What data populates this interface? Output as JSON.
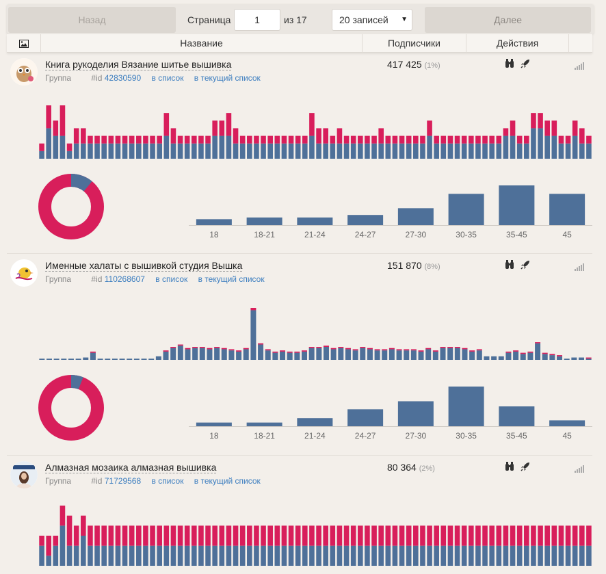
{
  "pagination": {
    "back_label": "Назад",
    "page_label": "Страница",
    "page_value": "1",
    "of_label": "из 17",
    "per_page": "20 записей",
    "next_label": "Далее"
  },
  "table_header": {
    "image_icon": "image-icon",
    "name": "Название",
    "subscribers": "Подписчики",
    "actions": "Действия"
  },
  "colors": {
    "blue": "#4e7099",
    "pink": "#d81e5b"
  },
  "groups": [
    {
      "title": "Книга рукоделия Вязание шитье вышивка",
      "type": "Группа",
      "id_label": "#id",
      "id": "42830590",
      "link_list": "в список",
      "link_current": "в текущий список",
      "subscribers": "417 425",
      "percent": "(1%)",
      "icons": [
        "binoculars-icon",
        "rocket-icon",
        "signal-icon"
      ]
    },
    {
      "title": "Именные халаты с вышивкой студия Вышка",
      "type": "Группа",
      "id_label": "#id",
      "id": "110268607",
      "link_list": "в список",
      "link_current": "в текущий список",
      "subscribers": "151 870",
      "percent": "(8%)",
      "icons": [
        "binoculars-icon",
        "rocket-icon",
        "signal-icon"
      ]
    },
    {
      "title": "Алмазная мозаика алмазная вышивка",
      "type": "Группа",
      "id_label": "#id",
      "id": "71729568",
      "link_list": "в список",
      "link_current": "в текущий список",
      "subscribers": "80 364",
      "percent": "(2%)",
      "icons": [
        "binoculars-icon",
        "rocket-icon",
        "signal-icon"
      ]
    }
  ],
  "chart_data": [
    {
      "type": "bar",
      "stacked": true,
      "series": [
        {
          "values": [
            1,
            4,
            3,
            3,
            1,
            2,
            2,
            2,
            2,
            2,
            2,
            2,
            2,
            2,
            2,
            2,
            2,
            2,
            3,
            2,
            2,
            2,
            2,
            2,
            2,
            3,
            3,
            3,
            2,
            2,
            2,
            2,
            2,
            2,
            2,
            2,
            2,
            2,
            2,
            3,
            2,
            2,
            2,
            2,
            2,
            2,
            2,
            2,
            2,
            2,
            2,
            2,
            2,
            2,
            2,
            2,
            3,
            2,
            2,
            2,
            2,
            2,
            2,
            2,
            2,
            2,
            2,
            3,
            3,
            2,
            2,
            4,
            4,
            3,
            3,
            2,
            2,
            3,
            2,
            2
          ]
        },
        {
          "values": [
            1,
            3,
            2,
            4,
            1,
            2,
            2,
            1,
            1,
            1,
            1,
            1,
            1,
            1,
            1,
            1,
            1,
            1,
            3,
            2,
            1,
            1,
            1,
            1,
            1,
            2,
            2,
            3,
            2,
            1,
            1,
            1,
            1,
            1,
            1,
            1,
            1,
            1,
            1,
            3,
            2,
            2,
            1,
            2,
            1,
            1,
            1,
            1,
            1,
            2,
            1,
            1,
            1,
            1,
            1,
            1,
            2,
            1,
            1,
            1,
            1,
            1,
            1,
            1,
            1,
            1,
            1,
            1,
            2,
            1,
            1,
            2,
            2,
            2,
            2,
            1,
            1,
            2,
            2,
            1
          ]
        }
      ],
      "axis": "none",
      "grid": false
    },
    {
      "type": "pie",
      "donut": true,
      "values": [
        89,
        11
      ]
    },
    {
      "type": "bar",
      "categories": [
        "18",
        "18-21",
        "21-24",
        "24-27",
        "27-30",
        "30-35",
        "35-45",
        "45"
      ],
      "values": [
        7,
        9,
        9,
        12,
        20,
        37,
        47,
        37
      ]
    },
    {
      "type": "bar",
      "stacked": true,
      "series": [
        {
          "values": [
            1,
            1,
            1,
            1,
            1,
            1,
            2,
            6,
            1,
            1,
            1,
            1,
            1,
            1,
            1,
            1,
            3,
            7,
            10,
            12,
            9,
            10,
            10,
            9,
            10,
            9,
            8,
            7,
            9,
            42,
            13,
            8,
            6,
            7,
            6,
            6,
            7,
            10,
            10,
            11,
            9,
            10,
            9,
            8,
            10,
            9,
            8,
            8,
            9,
            8,
            8,
            8,
            7,
            9,
            7,
            10,
            10,
            10,
            9,
            7,
            8,
            3,
            3,
            3,
            6,
            7,
            5,
            6,
            14,
            5,
            4,
            3,
            1,
            2,
            2,
            1
          ]
        },
        {
          "values": [
            0,
            0,
            0,
            0,
            0,
            0,
            0,
            1,
            0,
            0,
            0,
            0,
            0,
            0,
            0,
            0,
            0,
            1,
            1,
            1,
            1,
            1,
            1,
            1,
            1,
            1,
            1,
            1,
            1,
            2,
            1,
            1,
            1,
            1,
            1,
            1,
            1,
            1,
            1,
            1,
            1,
            1,
            1,
            1,
            1,
            1,
            1,
            1,
            1,
            1,
            1,
            1,
            1,
            1,
            1,
            1,
            1,
            1,
            1,
            1,
            1,
            0,
            0,
            0,
            1,
            1,
            1,
            1,
            1,
            1,
            1,
            1,
            0,
            0,
            0,
            1
          ]
        }
      ],
      "axis": "none",
      "grid": false
    },
    {
      "type": "pie",
      "donut": true,
      "values": [
        94,
        6
      ]
    },
    {
      "type": "bar",
      "categories": [
        "18",
        "18-21",
        "21-24",
        "24-27",
        "27-30",
        "30-35",
        "35-45",
        "45"
      ],
      "values": [
        5,
        5,
        11,
        23,
        34,
        54,
        27,
        8
      ]
    },
    {
      "type": "bar",
      "stacked": true,
      "series": [
        {
          "values": [
            2,
            1,
            2,
            4,
            2,
            2,
            3,
            2,
            2,
            2,
            2,
            2,
            2,
            2,
            2,
            2,
            2,
            2,
            2,
            2,
            2,
            2,
            2,
            2,
            2,
            2,
            2,
            2,
            2,
            2,
            2,
            2,
            2,
            2,
            2,
            2,
            2,
            2,
            2,
            2,
            2,
            2,
            2,
            2,
            2,
            2,
            2,
            2,
            2,
            2,
            2,
            2,
            2,
            2,
            2,
            2,
            2,
            2,
            2,
            2,
            2,
            2,
            2,
            2,
            2,
            2,
            2,
            2,
            2,
            2,
            2,
            2,
            2,
            2,
            2,
            2,
            2,
            2,
            2,
            2
          ]
        },
        {
          "values": [
            1,
            2,
            1,
            2,
            3,
            2,
            2,
            2,
            2,
            2,
            2,
            2,
            2,
            2,
            2,
            2,
            2,
            2,
            2,
            2,
            2,
            2,
            2,
            2,
            2,
            2,
            2,
            2,
            2,
            2,
            2,
            2,
            2,
            2,
            2,
            2,
            2,
            2,
            2,
            2,
            2,
            2,
            2,
            2,
            2,
            2,
            2,
            2,
            2,
            2,
            2,
            2,
            2,
            2,
            2,
            2,
            2,
            2,
            2,
            2,
            2,
            2,
            2,
            2,
            2,
            2,
            2,
            2,
            2,
            2,
            2,
            2,
            2,
            2,
            2,
            2,
            2,
            2,
            2,
            2
          ]
        }
      ],
      "axis": "none",
      "grid": false
    }
  ]
}
